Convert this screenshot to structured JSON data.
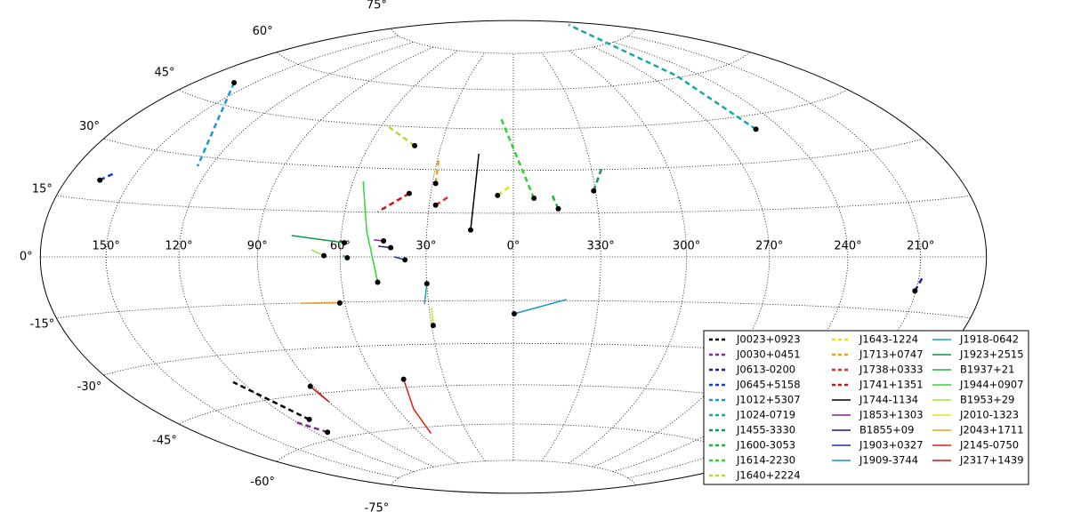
{
  "chart_data": {
    "type": "skymap",
    "projection": "hammer",
    "xlim": [
      -180,
      180
    ],
    "ylim": [
      -90,
      90
    ],
    "xticks": [
      {
        "value": 150,
        "label": "150°"
      },
      {
        "value": 120,
        "label": "120°"
      },
      {
        "value": 90,
        "label": "90°"
      },
      {
        "value": 60,
        "label": "60°"
      },
      {
        "value": 30,
        "label": "30°"
      },
      {
        "value": 0,
        "label": "0°"
      },
      {
        "value": 330,
        "label": "330°"
      },
      {
        "value": 300,
        "label": "300°"
      },
      {
        "value": 270,
        "label": "270°"
      },
      {
        "value": 240,
        "label": "240°"
      },
      {
        "value": 210,
        "label": "210°"
      }
    ],
    "yticks": [
      {
        "value": -75,
        "label": "-75°"
      },
      {
        "value": -60,
        "label": "-60°"
      },
      {
        "value": -45,
        "label": "-45°"
      },
      {
        "value": -30,
        "label": "-30°"
      },
      {
        "value": -15,
        "label": "-15°"
      },
      {
        "value": 0,
        "label": "0°"
      },
      {
        "value": 15,
        "label": "15°"
      },
      {
        "value": 30,
        "label": "30°"
      },
      {
        "value": 45,
        "label": "45°"
      },
      {
        "value": 60,
        "label": "60°"
      },
      {
        "value": 75,
        "label": "75°"
      }
    ],
    "grid": true,
    "legend_loc": "lower right",
    "series": [
      {
        "name": "J0023+0923",
        "color": "#000000",
        "dashed": true,
        "x": [
          111.4,
          124.0
        ],
        "values": [
          -52.8,
          -38.3
        ]
      },
      {
        "name": "J0030+0451",
        "color": "#7b2a97",
        "dashed": true,
        "x": [
          113.1,
          120.4
        ],
        "values": [
          -57.6,
          -52.9
        ]
      },
      {
        "name": "J0613-0200",
        "color": "#1a1aa6",
        "dashed": true,
        "x": [
          210.4,
          208.4
        ],
        "values": [
          -9.3,
          -5.5
        ]
      },
      {
        "name": "J0645+5158",
        "color": "#0a3fcf",
        "dashed": true,
        "x": [
          164.0,
          159.8
        ],
        "values": [
          20.2,
          22.4
        ]
      },
      {
        "name": "J1012+5307",
        "color": "#1a97d0",
        "dashed": true,
        "x": [
          160.3,
          125.6
        ],
        "values": [
          50.9,
          27.1
        ]
      },
      {
        "name": "J1024-0719",
        "color": "#16a8a8",
        "dashed": true,
        "x": [
          251.7,
          253.6,
          201.2
        ],
        "values": [
          40.5,
          60.7,
          83.1
        ]
      },
      {
        "name": "J1455-3330",
        "color": "#0f9a4a",
        "dashed": true,
        "x": [
          330.7,
          325.5
        ],
        "values": [
          22.6,
          31.2
        ]
      },
      {
        "name": "J1600-3053",
        "color": "#14b83c",
        "dashed": true,
        "x": [
          344.1,
          345.9
        ],
        "values": [
          16.5,
          21.1
        ]
      },
      {
        "name": "J1614-2230",
        "color": "#2bd62b",
        "dashed": true,
        "x": [
          352.6,
          5.9
        ],
        "values": [
          20.2,
          49.0
        ]
      },
      {
        "name": "J1640+2224",
        "color": "#a8e02a",
        "dashed": true,
        "x": [
          41.0,
          58.6
        ],
        "values": [
          38.3,
          45.4
        ]
      },
      {
        "name": "J1643-1224",
        "color": "#e6e01a",
        "dashed": true,
        "x": [
          5.7,
          1.3
        ],
        "values": [
          21.2,
          24.3
        ]
      },
      {
        "name": "J1713+0747",
        "color": "#f0a010",
        "dashed": true,
        "x": [
          28.8,
          29.6
        ],
        "values": [
          25.2,
          34.1
        ]
      },
      {
        "name": "J1738+0333",
        "color": "#e03020",
        "dashed": true,
        "x": [
          27.7,
          23.1
        ],
        "values": [
          17.7,
          20.8
        ]
      },
      {
        "name": "J1741+1351",
        "color": "#d01010",
        "dashed": true,
        "x": [
          37.9,
          48.0
        ],
        "values": [
          21.6,
          15.2
        ]
      },
      {
        "name": "J1744-1134",
        "color": "#000000",
        "dashed": false,
        "x": [
          14.8,
          13.9
        ],
        "values": [
          9.2,
          35.9
        ]
      },
      {
        "name": "J1853+1303",
        "color": "#8a1f9a",
        "dashed": false,
        "x": [
          44.9,
          48.3
        ],
        "values": [
          5.4,
          5.7
        ]
      },
      {
        "name": "B1855+09",
        "color": "#2a0aa0",
        "dashed": false,
        "x": [
          42.3,
          46.7
        ],
        "values": [
          3.1,
          3.6
        ]
      },
      {
        "name": "J1903+0327",
        "color": "#1a30b0",
        "dashed": false,
        "x": [
          37.3,
          41.0
        ],
        "values": [
          -1.0,
          0.0
        ]
      },
      {
        "name": "J1909-3744",
        "color": "#1a90d0",
        "dashed": false,
        "x": [
          359.7,
          341.3
        ],
        "values": [
          -19.6,
          -14.6
        ]
      },
      {
        "name": "J1918-0642",
        "color": "#1aa8a8",
        "dashed": false,
        "x": [
          30.0,
          31.5
        ],
        "values": [
          -9.1,
          -16.1
        ]
      },
      {
        "name": "J1923+2515",
        "color": "#10954a",
        "dashed": false,
        "x": [
          58.7,
          77.9
        ],
        "values": [
          4.7,
          6.9
        ]
      },
      {
        "name": "B1937+21",
        "color": "#20b040",
        "dashed": false,
        "x": [
          57.5,
          59.0
        ],
        "values": [
          -0.3,
          0.5
        ]
      },
      {
        "name": "J1944+0907",
        "color": "#30d830",
        "dashed": false,
        "x": [
          47.2,
          51.1,
          56.2
        ],
        "values": [
          -8.5,
          8.6,
          25.4
        ]
      },
      {
        "name": "B1953+29",
        "color": "#a0e040",
        "dashed": false,
        "x": [
          65.8,
          70.3
        ],
        "values": [
          0.4,
          2.3
        ]
      },
      {
        "name": "J2010-1323",
        "color": "#e0e020",
        "dashed": false,
        "x": [
          29.4,
          29.1
        ],
        "values": [
          -23.5,
          -17.3
        ]
      },
      {
        "name": "J2043+1711",
        "color": "#f0a010",
        "dashed": false,
        "x": [
          61.9,
          76.6
        ],
        "values": [
          -15.3,
          -15.1
        ]
      },
      {
        "name": "J2145-0750",
        "color": "#e02010",
        "dashed": false,
        "x": [
          47.8,
          51.6,
          53.4
        ],
        "values": [
          -42.1,
          -53.0,
          -62.6
        ]
      },
      {
        "name": "J2317+1439",
        "color": "#d01010",
        "dashed": false,
        "x": [
          91.4,
          90.1
        ],
        "values": [
          -42.4,
          -48.1
        ]
      }
    ]
  }
}
